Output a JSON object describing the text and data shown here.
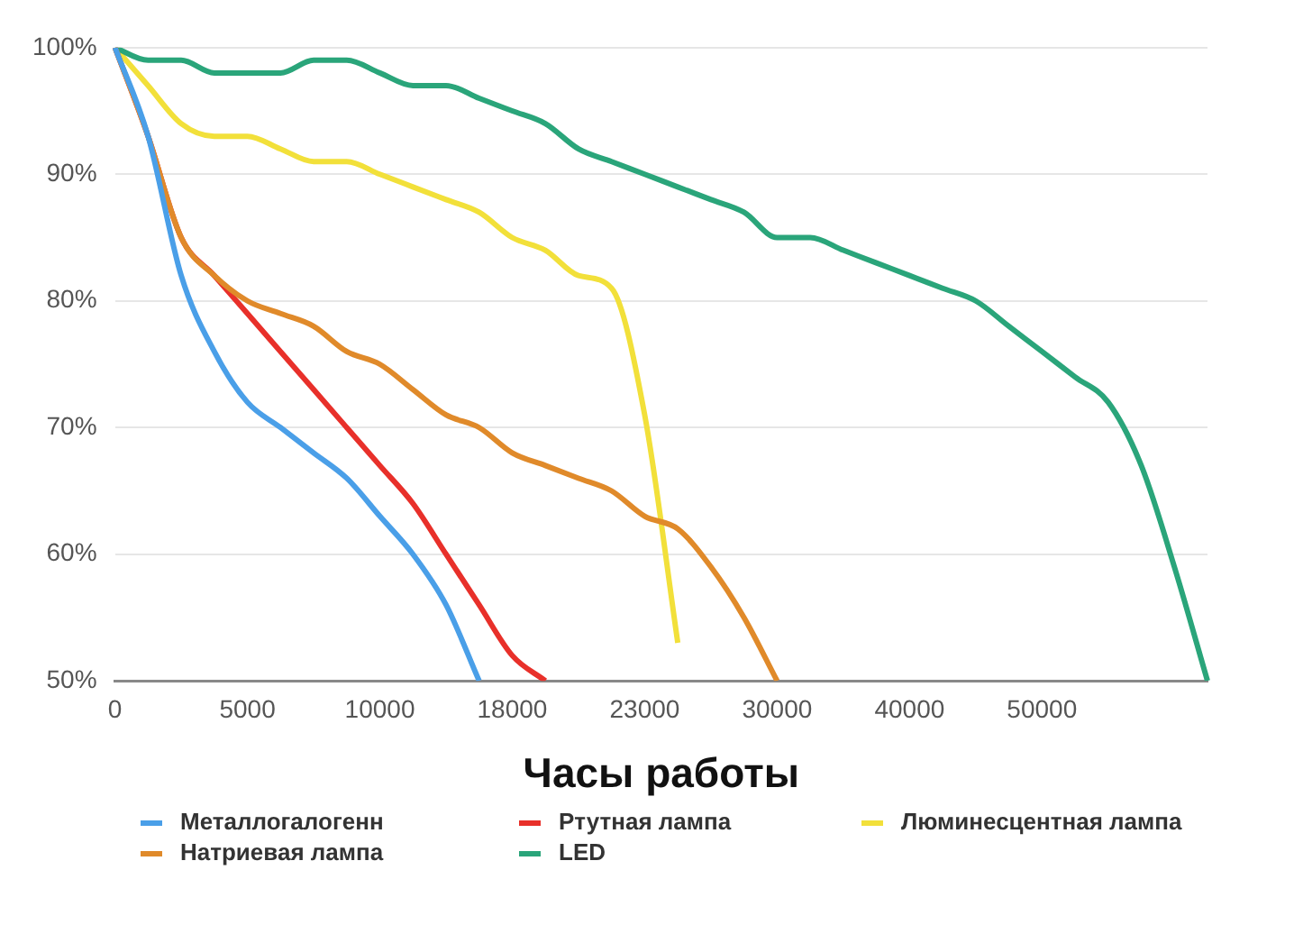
{
  "chart_data": {
    "type": "line",
    "xlabel": "Часы работы",
    "categories": [
      "0",
      null,
      null,
      null,
      "5000",
      null,
      null,
      null,
      "10000",
      null,
      null,
      null,
      "18000",
      null,
      null,
      null,
      "23000",
      null,
      null,
      null,
      "30000",
      null,
      null,
      null,
      "40000",
      null,
      null,
      null,
      "50000",
      null,
      null,
      null,
      null,
      null
    ],
    "ylim": [
      50,
      100
    ],
    "yticks": [
      {
        "value": 50,
        "label": "50%"
      },
      {
        "value": 60,
        "label": "60%"
      },
      {
        "value": 70,
        "label": "70%"
      },
      {
        "value": 80,
        "label": "80%"
      },
      {
        "value": 90,
        "label": "90%"
      },
      {
        "value": 100,
        "label": "100%"
      }
    ],
    "grid": "y",
    "legend": "bottom",
    "marker": "none",
    "line_style": "solid",
    "series": [
      {
        "name": "Металлогалогенн",
        "color": "#4a9fe8",
        "values": [
          100,
          93,
          82,
          76,
          72,
          70,
          68,
          66,
          63,
          60,
          56,
          50,
          null,
          null,
          null,
          null,
          null,
          null,
          null,
          null,
          null,
          null,
          null,
          null,
          null,
          null,
          null,
          null,
          null,
          null,
          null,
          null,
          null,
          null
        ]
      },
      {
        "name": "Натриевая лампа",
        "color": "#e08a2a",
        "values": [
          100,
          93,
          85,
          82,
          80,
          79,
          78,
          76,
          75,
          73,
          71,
          70,
          68,
          67,
          66,
          65,
          63,
          62,
          59,
          55,
          50,
          null,
          null,
          null,
          null,
          null,
          null,
          null,
          null,
          null,
          null,
          null,
          null,
          null
        ]
      },
      {
        "name": "Ртутная лампа",
        "color": "#e8302a",
        "values": [
          100,
          93,
          85,
          82,
          79,
          76,
          73,
          70,
          67,
          64,
          60,
          56,
          52,
          50,
          null,
          null,
          null,
          null,
          null,
          null,
          null,
          null,
          null,
          null,
          null,
          null,
          null,
          null,
          null,
          null,
          null,
          null,
          null,
          null
        ]
      },
      {
        "name": "LED",
        "color": "#2aa57a",
        "values": [
          100,
          99,
          99,
          98,
          98,
          98,
          99,
          99,
          98,
          97,
          97,
          96,
          95,
          94,
          92,
          91,
          90,
          89,
          88,
          87,
          85,
          85,
          84,
          83,
          82,
          81,
          80,
          78,
          76,
          74,
          72,
          67,
          59,
          50
        ]
      },
      {
        "name": "Люминесцентная лампа",
        "color": "#f2e03a",
        "values": [
          100,
          97,
          94,
          93,
          93,
          92,
          91,
          91,
          90,
          89,
          88,
          87,
          85,
          84,
          82,
          81,
          71,
          53,
          null,
          null,
          null,
          null,
          null,
          null,
          null,
          null,
          null,
          null,
          null,
          null,
          null,
          null,
          null,
          null
        ]
      }
    ]
  }
}
